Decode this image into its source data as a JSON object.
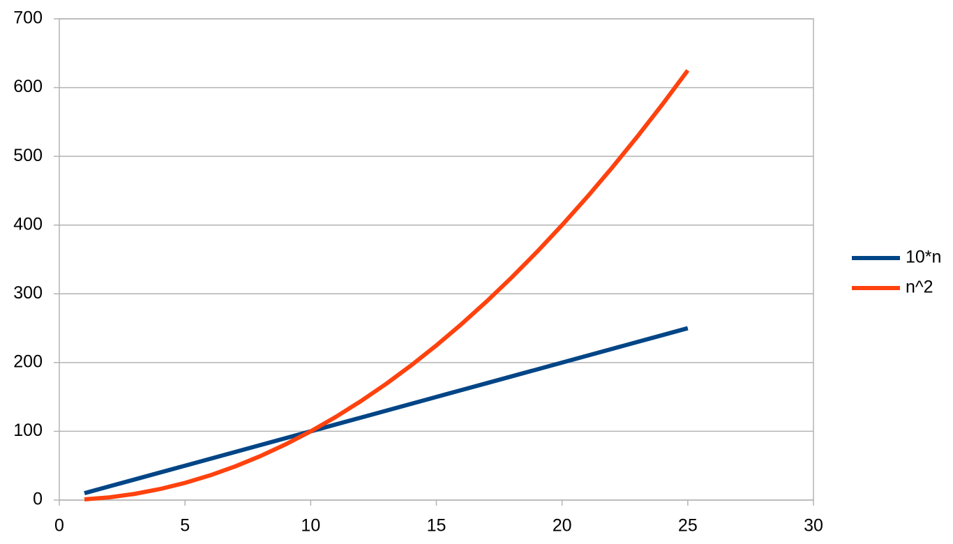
{
  "chart_data": {
    "type": "line",
    "x": [
      1,
      2,
      3,
      4,
      5,
      6,
      7,
      8,
      9,
      10,
      11,
      12,
      13,
      14,
      15,
      16,
      17,
      18,
      19,
      20,
      21,
      22,
      23,
      24,
      25
    ],
    "series": [
      {
        "name": "10*n",
        "color": "#004586",
        "values": [
          10,
          20,
          30,
          40,
          50,
          60,
          70,
          80,
          90,
          100,
          110,
          120,
          130,
          140,
          150,
          160,
          170,
          180,
          190,
          200,
          210,
          220,
          230,
          240,
          250
        ]
      },
      {
        "name": "n^2",
        "color": "#ff420e",
        "values": [
          1,
          4,
          9,
          16,
          25,
          36,
          49,
          64,
          81,
          100,
          121,
          144,
          169,
          196,
          225,
          256,
          289,
          324,
          361,
          400,
          441,
          484,
          529,
          576,
          625
        ]
      }
    ],
    "xlim": [
      0,
      30
    ],
    "xticks": [
      0,
      5,
      10,
      15,
      20,
      25,
      30
    ],
    "ylim": [
      0,
      700
    ],
    "yticks": [
      0,
      100,
      200,
      300,
      400,
      500,
      600,
      700
    ],
    "grid": true,
    "legend": "right"
  }
}
